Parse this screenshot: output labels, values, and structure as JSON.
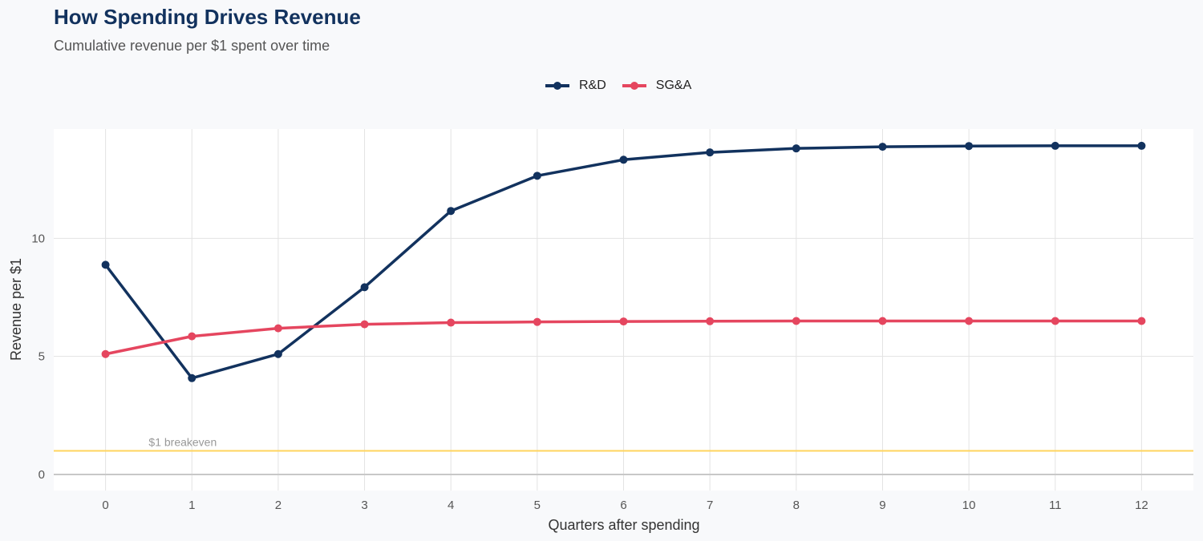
{
  "title": "How Spending Drives Revenue",
  "subtitle": "Cumulative revenue per $1 spent over time",
  "chart_data": {
    "type": "line",
    "xlabel": "Quarters after spending",
    "ylabel": "Revenue per $1",
    "x": [
      0,
      1,
      2,
      3,
      4,
      5,
      6,
      7,
      8,
      9,
      10,
      11,
      12
    ],
    "xticks": [
      0,
      1,
      2,
      3,
      4,
      5,
      6,
      7,
      8,
      9,
      10,
      11,
      12
    ],
    "yticks": [
      0,
      5,
      10
    ],
    "xlim": [
      -0.6,
      12.6
    ],
    "ylim": [
      -0.68,
      14.63
    ],
    "grid": true,
    "legend_position": "top",
    "series": [
      {
        "name": "R&D",
        "color": "#12325e",
        "values": [
          8.88,
          4.08,
          5.1,
          7.93,
          11.16,
          12.65,
          13.33,
          13.64,
          13.81,
          13.88,
          13.91,
          13.92,
          13.92
        ]
      },
      {
        "name": "SG&A",
        "color": "#e5465f",
        "values": [
          5.1,
          5.85,
          6.19,
          6.36,
          6.43,
          6.46,
          6.48,
          6.49,
          6.5,
          6.5,
          6.5,
          6.5,
          6.5
        ]
      }
    ],
    "annotations": [
      {
        "type": "hline",
        "y": 1,
        "color": "#ffd45e",
        "label": "$1 breakeven"
      }
    ]
  }
}
